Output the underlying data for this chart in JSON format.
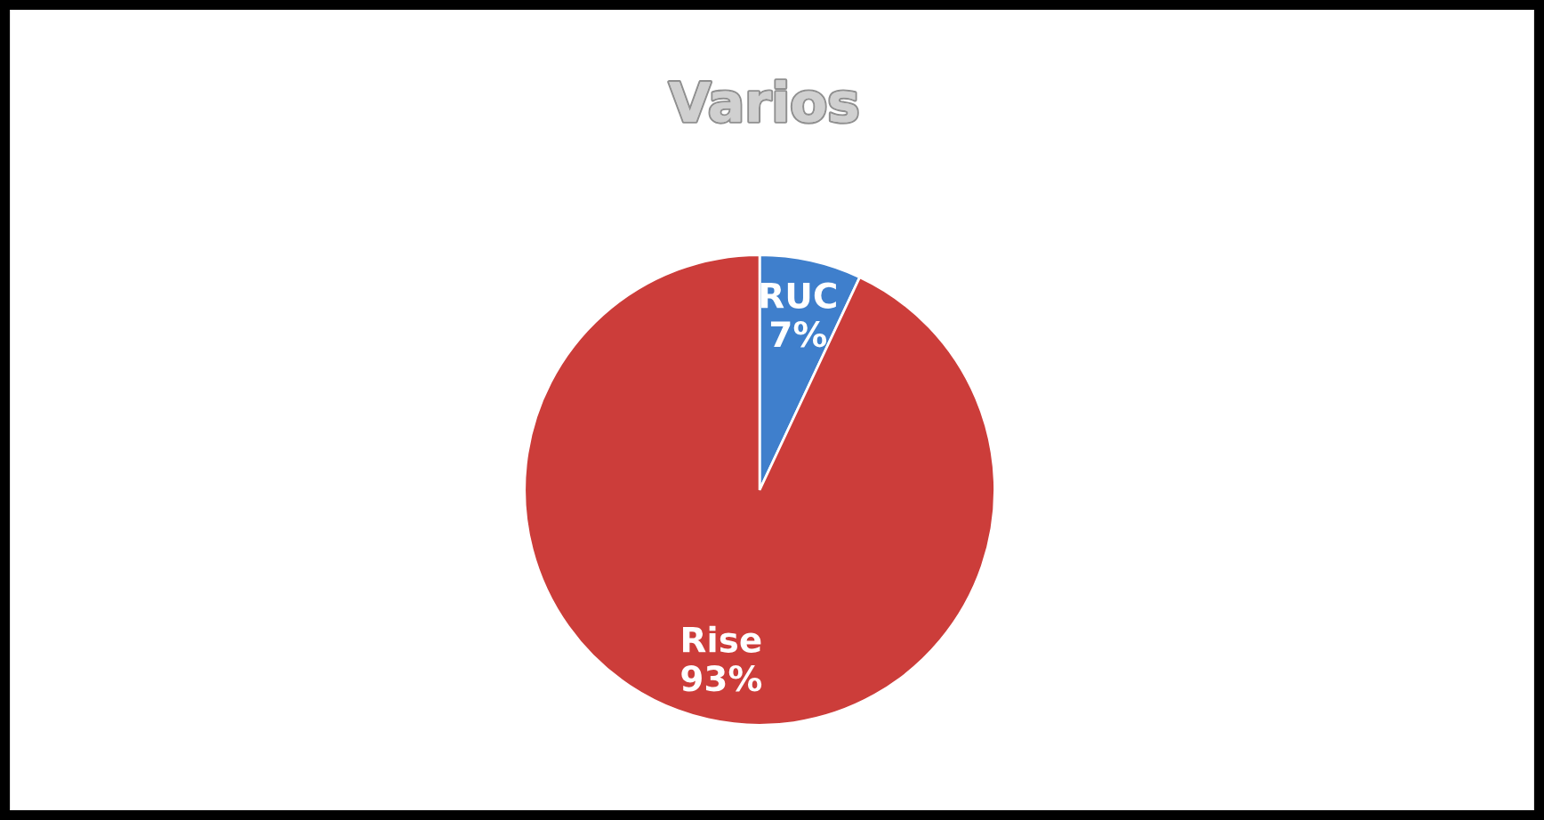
{
  "chart_data": {
    "type": "pie",
    "title": "Varios",
    "categories": [
      "RUC",
      "Rise"
    ],
    "values": [
      7,
      93
    ],
    "colors": [
      "#3f7fcc",
      "#cc3d3a"
    ],
    "value_labels": [
      "7%",
      "93%"
    ]
  }
}
